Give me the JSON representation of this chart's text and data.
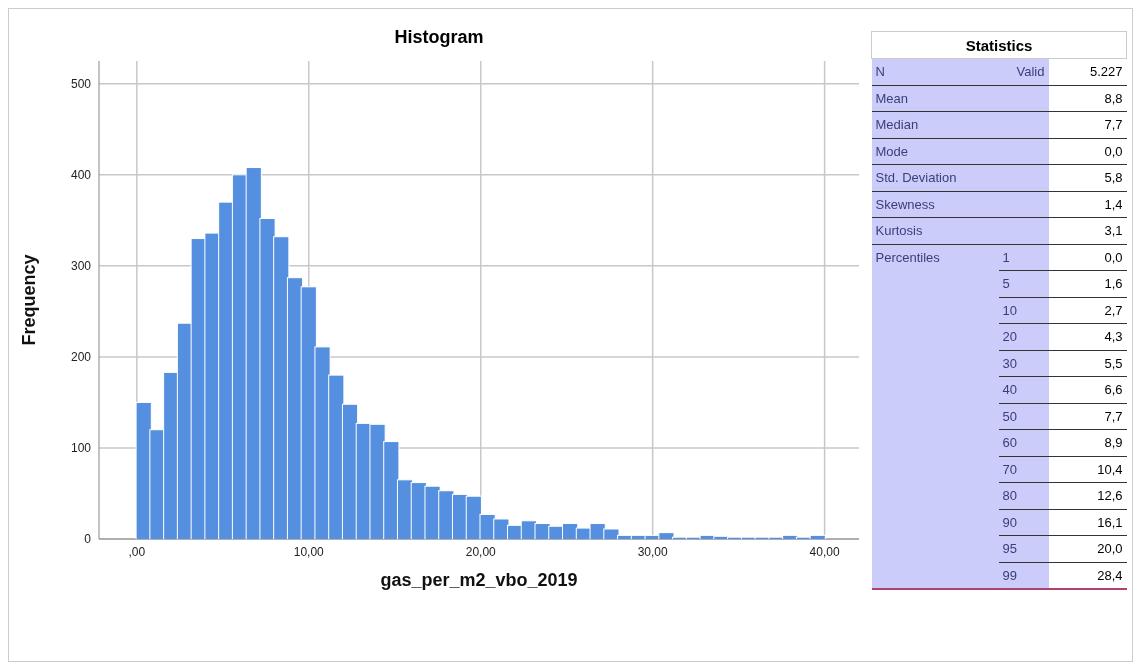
{
  "chart_data": [
    {
      "type": "histogram",
      "title": "Histogram",
      "xlabel": "gas_per_m2_vbo_2019",
      "ylabel": "Frequency",
      "color": "#5590e0",
      "grid": true,
      "bins": [
        0,
        0.8,
        1.6,
        2.4,
        3.2,
        4,
        4.8,
        5.6,
        6.4,
        7.2,
        8,
        8.8,
        9.6,
        10.4,
        11.2,
        12,
        12.8,
        13.6,
        14.4,
        15.2,
        16,
        16.8,
        17.6,
        18.4,
        19.2,
        20,
        20.8,
        21.6,
        22.4,
        23.2,
        24,
        24.8,
        25.6,
        26.4,
        27.2,
        28,
        28.8,
        29.6,
        30.4,
        31.2,
        32,
        32.8,
        33.6,
        34.4,
        35.2,
        36,
        36.8,
        37.6,
        38.4,
        39.2,
        40
      ],
      "values": [
        150,
        120,
        183,
        237,
        330,
        336,
        370,
        400,
        408,
        352,
        332,
        287,
        277,
        211,
        180,
        148,
        127,
        126,
        107,
        65,
        62,
        58,
        53,
        49,
        47,
        27,
        22,
        15,
        20,
        17,
        14,
        17,
        12,
        17,
        11,
        4,
        4,
        4,
        7,
        2,
        2,
        4,
        3,
        2,
        2,
        2,
        2,
        4,
        2,
        4
      ],
      "xlim": [
        -2.2,
        42
      ],
      "xticks": [
        {
          "value": 0,
          "label": ",00"
        },
        {
          "value": 10,
          "label": "10,00"
        },
        {
          "value": 20,
          "label": "20,00"
        },
        {
          "value": 30,
          "label": "30,00"
        },
        {
          "value": 40,
          "label": "40,00"
        }
      ],
      "ylim": [
        0,
        525
      ],
      "yticks": [
        0,
        100,
        200,
        300,
        400,
        500
      ]
    },
    {
      "type": "other",
      "title": "Statistics",
      "y_categories": [
        "N",
        "Mean",
        "Median",
        "Mode",
        "Std. Deviation",
        "Skewness",
        "Kurtosis",
        "Percentiles",
        null,
        null,
        null,
        null,
        null,
        null,
        null,
        null,
        null,
        null,
        null
      ],
      "y2_categories": [
        "Valid",
        null,
        null,
        null,
        null,
        null,
        null,
        "1",
        "5",
        "10",
        "20",
        "30",
        "40",
        "50",
        "60",
        "70",
        "80",
        "90",
        "95",
        "99"
      ],
      "cell_labels": [
        [
          "5.227"
        ],
        [
          "8,8"
        ],
        [
          "7,7"
        ],
        [
          "0,0"
        ],
        [
          "5,8"
        ],
        [
          "1,4"
        ],
        [
          "3,1"
        ],
        [
          "0,0"
        ],
        [
          "1,6"
        ],
        [
          "2,7"
        ],
        [
          "4,3"
        ],
        [
          "5,5"
        ],
        [
          "6,6"
        ],
        [
          "7,7"
        ],
        [
          "8,9"
        ],
        [
          "10,4"
        ],
        [
          "12,6"
        ],
        [
          "16,1"
        ],
        [
          "20,0"
        ],
        [
          "28,4"
        ]
      ]
    }
  ]
}
